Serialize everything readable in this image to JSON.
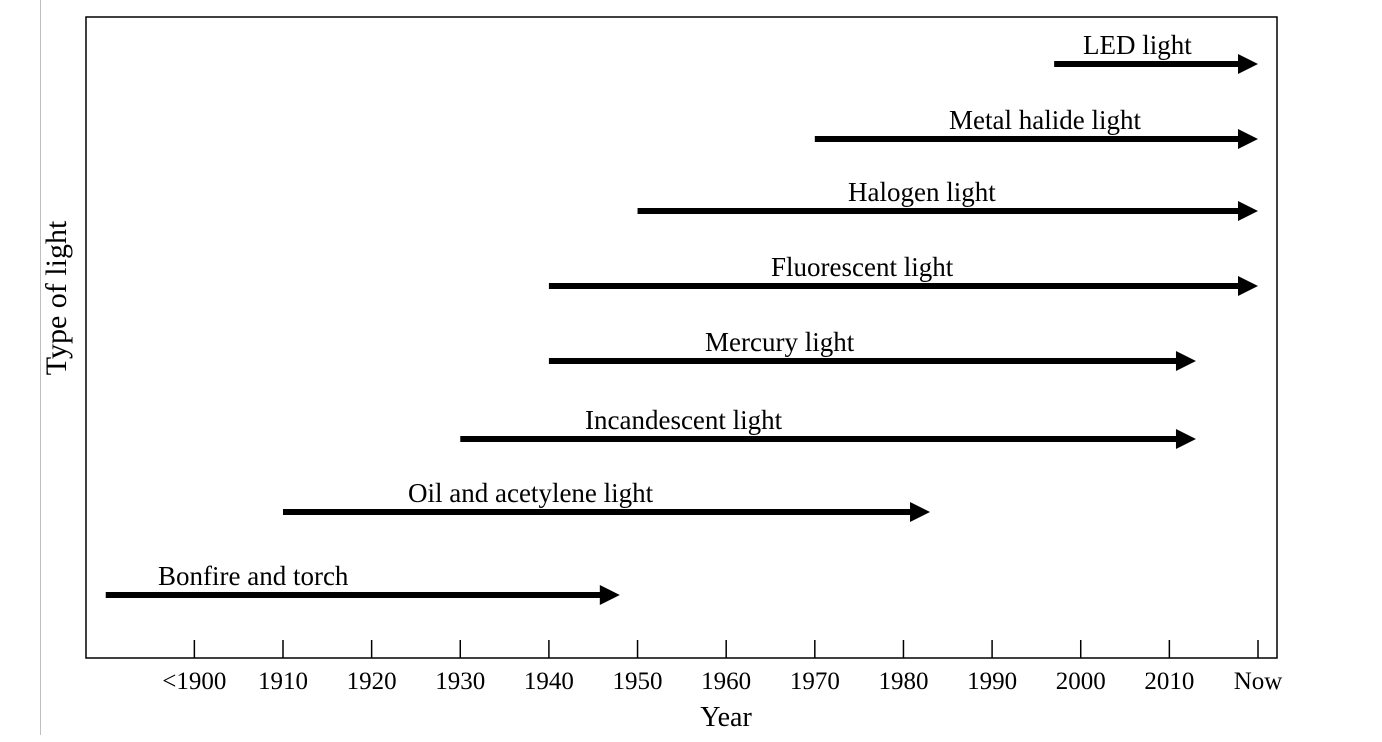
{
  "chart_data": {
    "type": "timeline",
    "title": "",
    "xlabel": "Year",
    "ylabel": "Type of light",
    "x_ticks": [
      "<1900",
      "1910",
      "1920",
      "1930",
      "1940",
      "1950",
      "1960",
      "1970",
      "1980",
      "1990",
      "2000",
      "2010",
      "Now"
    ],
    "x_tick_years": [
      1900,
      1910,
      1920,
      1930,
      1940,
      1950,
      1960,
      1970,
      1980,
      1990,
      2000,
      2010,
      2020
    ],
    "xlim": [
      1885,
      2021
    ],
    "series": [
      {
        "name": "Bonfire and torch",
        "start": 1890,
        "end": 1948
      },
      {
        "name": "Oil and acetylene light",
        "start": 1910,
        "end": 1983
      },
      {
        "name": "Incandescent light",
        "start": 1930,
        "end": 2013
      },
      {
        "name": "Mercury light",
        "start": 1940,
        "end": 2013
      },
      {
        "name": "Fluorescent light",
        "start": 1940,
        "end": 2020
      },
      {
        "name": "Halogen light",
        "start": 1950,
        "end": 2020
      },
      {
        "name": "Metal halide light",
        "start": 1970,
        "end": 2020
      },
      {
        "name": "LED light",
        "start": 1997,
        "end": 2020
      }
    ],
    "colors": {
      "arrow": "#000000",
      "axis": "#000000",
      "background": "#ffffff"
    }
  }
}
